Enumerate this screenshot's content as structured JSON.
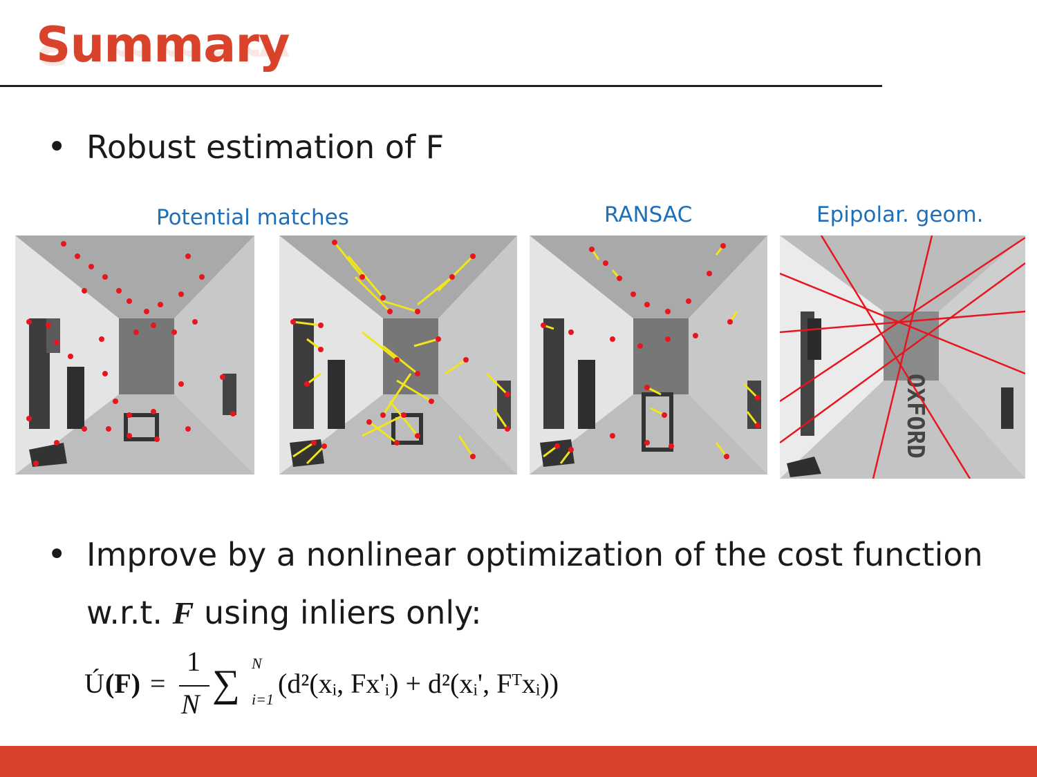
{
  "slide": {
    "title": "Summary",
    "bullets": [
      {
        "text": "Robust estimation of F"
      },
      {
        "line1": "Improve by a nonlinear optimization of the cost function",
        "line2_prefix": "w.r.t.",
        "line2_var": "F",
        "line2_suffix": "using inliers only:"
      }
    ],
    "bullet_glyph": "•",
    "captions": {
      "potential": "Potential matches",
      "ransac": "RANSAC",
      "epipolar": "Epipolar. geom."
    },
    "formula": {
      "lhs_symbol": "Ú",
      "lhs_arg": "(F)",
      "equals": "=",
      "frac_num": "1",
      "frac_den": "N",
      "sum": "∑",
      "sum_upper": "N",
      "sum_lower": "i=1",
      "body": "(d²(xᵢ, Fx'ᵢ) + d²(xᵢ', Fᵀxᵢ))"
    },
    "colors": {
      "accent": "#d9432b",
      "caption": "#1f6fb8",
      "match_point": "#e8141e",
      "match_line": "#f2e51a",
      "epipolar_line": "#e8141e"
    }
  }
}
